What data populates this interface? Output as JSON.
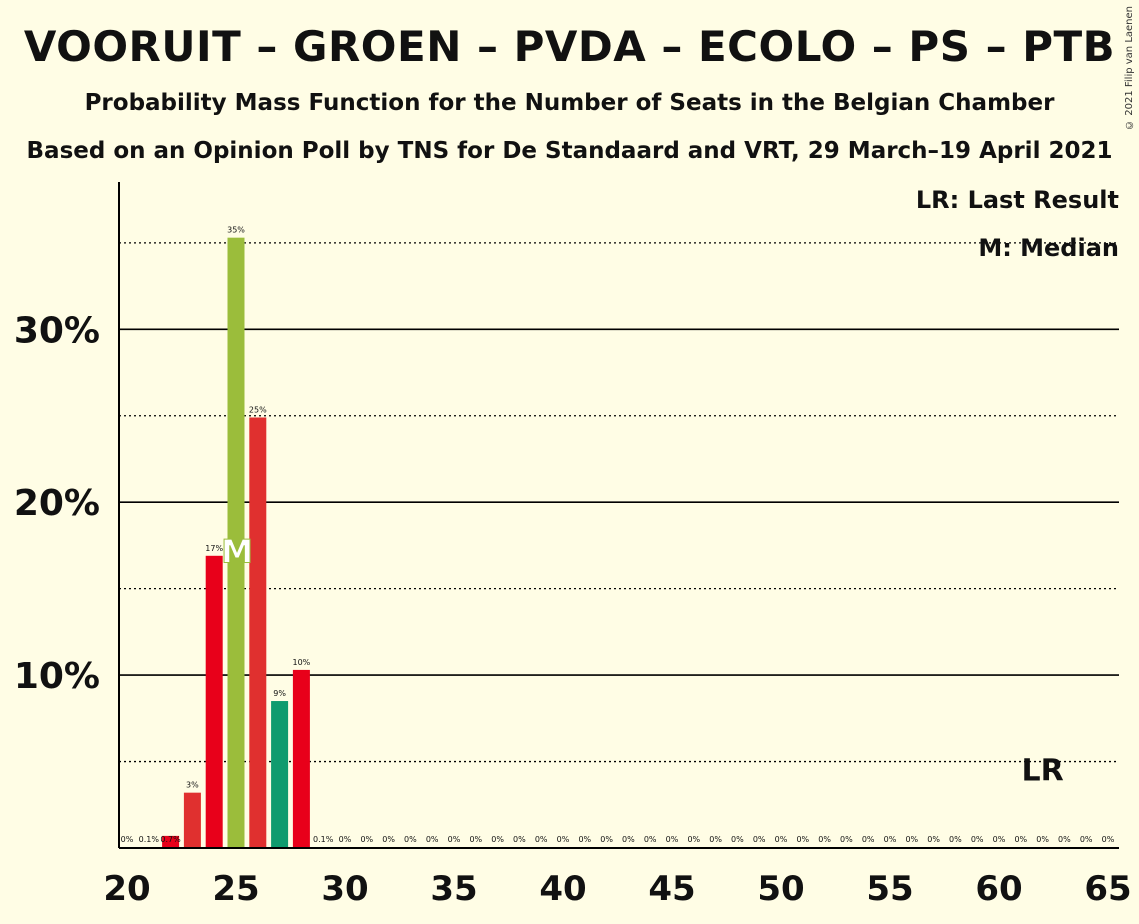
{
  "title": "VOORUIT – GROEN – PVDA – ECOLO – PS – PTB",
  "subtitle1": "Probability Mass Function for the Number of Seats in the Belgian Chamber",
  "subtitle2": "Based on an Opinion Poll by TNS for De Standaard and VRT, 29 March–19 April 2021",
  "copyright": "© 2021 Filip van Laenen",
  "legend": {
    "last_result": "LR: Last Result",
    "median": "M: Median"
  },
  "colors": {
    "background": "#fffde5",
    "red": "#e8001a",
    "red_ps": "#e0302f",
    "green_groen": "#9bbd3b",
    "green_ecolo": "#0f9b6e"
  },
  "chart_data": {
    "type": "bar",
    "xlim": [
      20,
      65
    ],
    "ylim": [
      0,
      38
    ],
    "x_ticks": [
      20,
      25,
      30,
      35,
      40,
      45,
      50,
      55,
      60,
      65
    ],
    "y_ticks": [
      10,
      20,
      30
    ],
    "y_tick_labels": [
      "10%",
      "20%",
      "30%"
    ],
    "y_dotted_gridlines": [
      5,
      15,
      25,
      35
    ],
    "grid": true,
    "median_seat": 25,
    "median_marker": "M",
    "last_result_seat": 62,
    "last_result_marker": "LR",
    "bars": [
      {
        "x": 20,
        "value": 0,
        "label": "0%"
      },
      {
        "x": 21,
        "value": 0.1,
        "label": "0.1%"
      },
      {
        "x": 22,
        "value": 0.7,
        "label": "0.7%",
        "color": "#e8001a"
      },
      {
        "x": 23,
        "value": 3.2,
        "label": "3%",
        "color": "#e0302f"
      },
      {
        "x": 24,
        "value": 16.9,
        "label": "17%",
        "color": "#e8001a"
      },
      {
        "x": 25,
        "value": 35.3,
        "label": "35%",
        "color": "#9bbd3b"
      },
      {
        "x": 26,
        "value": 24.9,
        "label": "25%",
        "color": "#e0302f"
      },
      {
        "x": 27,
        "value": 8.5,
        "label": "9%",
        "color": "#0f9b6e"
      },
      {
        "x": 28,
        "value": 10.3,
        "label": "10%",
        "color": "#e8001a"
      },
      {
        "x": 29,
        "value": 0.1,
        "label": "0.1%"
      },
      {
        "x": 30,
        "value": 0,
        "label": "0%"
      },
      {
        "x": 31,
        "value": 0,
        "label": "0%"
      },
      {
        "x": 32,
        "value": 0,
        "label": "0%"
      },
      {
        "x": 33,
        "value": 0,
        "label": "0%"
      },
      {
        "x": 34,
        "value": 0,
        "label": "0%"
      },
      {
        "x": 35,
        "value": 0,
        "label": "0%"
      },
      {
        "x": 36,
        "value": 0,
        "label": "0%"
      },
      {
        "x": 37,
        "value": 0,
        "label": "0%"
      },
      {
        "x": 38,
        "value": 0,
        "label": "0%"
      },
      {
        "x": 39,
        "value": 0,
        "label": "0%"
      },
      {
        "x": 40,
        "value": 0,
        "label": "0%"
      },
      {
        "x": 41,
        "value": 0,
        "label": "0%"
      },
      {
        "x": 42,
        "value": 0,
        "label": "0%"
      },
      {
        "x": 43,
        "value": 0,
        "label": "0%"
      },
      {
        "x": 44,
        "value": 0,
        "label": "0%"
      },
      {
        "x": 45,
        "value": 0,
        "label": "0%"
      },
      {
        "x": 46,
        "value": 0,
        "label": "0%"
      },
      {
        "x": 47,
        "value": 0,
        "label": "0%"
      },
      {
        "x": 48,
        "value": 0,
        "label": "0%"
      },
      {
        "x": 49,
        "value": 0,
        "label": "0%"
      },
      {
        "x": 50,
        "value": 0,
        "label": "0%"
      },
      {
        "x": 51,
        "value": 0,
        "label": "0%"
      },
      {
        "x": 52,
        "value": 0,
        "label": "0%"
      },
      {
        "x": 53,
        "value": 0,
        "label": "0%"
      },
      {
        "x": 54,
        "value": 0,
        "label": "0%"
      },
      {
        "x": 55,
        "value": 0,
        "label": "0%"
      },
      {
        "x": 56,
        "value": 0,
        "label": "0%"
      },
      {
        "x": 57,
        "value": 0,
        "label": "0%"
      },
      {
        "x": 58,
        "value": 0,
        "label": "0%"
      },
      {
        "x": 59,
        "value": 0,
        "label": "0%"
      },
      {
        "x": 60,
        "value": 0,
        "label": "0%"
      },
      {
        "x": 61,
        "value": 0,
        "label": "0%"
      },
      {
        "x": 62,
        "value": 0,
        "label": "0%"
      },
      {
        "x": 63,
        "value": 0,
        "label": "0%"
      },
      {
        "x": 64,
        "value": 0,
        "label": "0%"
      },
      {
        "x": 65,
        "value": 0,
        "label": "0%"
      }
    ]
  }
}
